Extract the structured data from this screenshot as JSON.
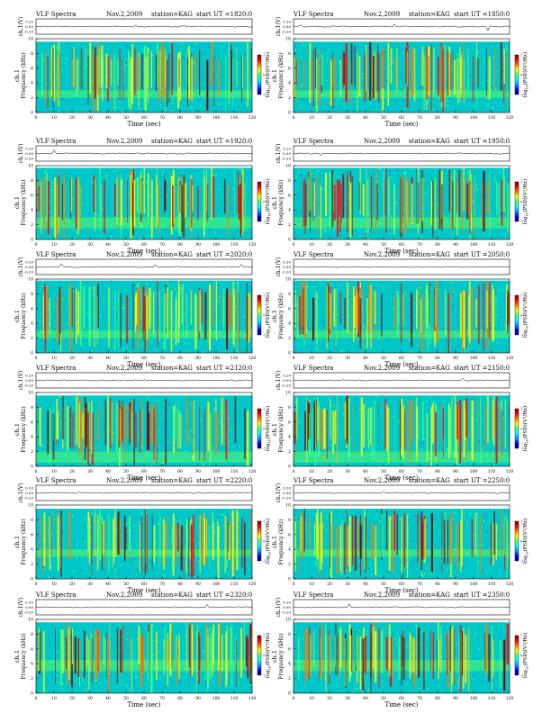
{
  "header": {
    "instrument": "VLF Spectra",
    "date": "Nov.2,2009",
    "station": "station=KAG",
    "start_prefix": "start  UT  ="
  },
  "labels": {
    "ch_axis": "ch.1(V)",
    "freq_axis_line1": "ch.1",
    "freq_axis_line2": "Frequency  (kHz)",
    "time_axis": "Time  (sec)",
    "colorbar": "log",
    "colorbar_sub": "10",
    "colorbar_rest": "(PSD)(V",
    "colorbar_sup": "2",
    "colorbar_end": "/Hz)"
  },
  "colors": {
    "background": "#00c8c8",
    "axis": "#000000",
    "colorbar_stops": [
      "#00007f",
      "#0000ff",
      "#00a0ff",
      "#00ffff",
      "#40ff80",
      "#ffff00",
      "#ff8000",
      "#ff0000",
      "#7f0000"
    ]
  },
  "chart_data": [
    {
      "type": "heatmap",
      "start_ut": "1820:0",
      "xlim": [
        0,
        120
      ],
      "x_ticks": [
        0,
        10,
        20,
        30,
        40,
        50,
        60,
        70,
        80,
        90,
        100,
        110,
        120
      ],
      "ylim": [
        0,
        10
      ],
      "y_ticks": [
        0,
        2,
        4,
        6,
        8,
        10
      ],
      "ch_ticks": [
        "0.20",
        "0.00",
        "-0.20"
      ],
      "colorbar_ticks": [
        "1",
        "0",
        "-1"
      ],
      "seed": 11,
      "band_top": 9.6,
      "low_band": [
        2,
        3
      ]
    },
    {
      "type": "heatmap",
      "start_ut": "1850:0",
      "xlim": [
        0,
        120
      ],
      "x_ticks": [
        0,
        10,
        20,
        30,
        40,
        50,
        60,
        70,
        80,
        90,
        100,
        110,
        120
      ],
      "ylim": [
        0,
        10
      ],
      "y_ticks": [
        0,
        2,
        4,
        6,
        8,
        10
      ],
      "ch_ticks": [
        "0.20",
        "0.00",
        "-0.20"
      ],
      "colorbar_ticks": [
        "1",
        "0",
        "-1"
      ],
      "seed": 23,
      "band_top": 9.6,
      "low_band": [
        2,
        3
      ]
    },
    {
      "type": "heatmap",
      "start_ut": "1920:0",
      "xlim": [
        0,
        120
      ],
      "x_ticks": [
        0,
        10,
        20,
        30,
        40,
        50,
        60,
        70,
        80,
        90,
        100,
        110,
        120
      ],
      "ylim": [
        0,
        10
      ],
      "y_ticks": [
        0,
        2,
        4,
        6,
        8,
        10
      ],
      "ch_ticks": [
        "0.20",
        "0.00",
        "-0.20"
      ],
      "colorbar_ticks": [
        "1",
        "0",
        "-1"
      ],
      "seed": 37,
      "band_top": 9.7,
      "low_band": [
        1.5,
        3
      ]
    },
    {
      "type": "heatmap",
      "start_ut": "1950:0",
      "xlim": [
        0,
        120
      ],
      "x_ticks": [
        0,
        10,
        20,
        30,
        40,
        50,
        60,
        70,
        80,
        90,
        100,
        110,
        120
      ],
      "ylim": [
        0,
        10
      ],
      "y_ticks": [
        0,
        2,
        4,
        6,
        8,
        10
      ],
      "ch_ticks": [
        "0.20",
        "0.00",
        "-0.20"
      ],
      "colorbar_ticks": [
        "1",
        "0",
        "-1"
      ],
      "seed": 41,
      "band_top": 9.7,
      "low_band": [
        1.5,
        3
      ]
    },
    {
      "type": "heatmap",
      "start_ut": "2020:0",
      "xlim": [
        0,
        120
      ],
      "x_ticks": [
        0,
        10,
        20,
        30,
        40,
        50,
        60,
        70,
        80,
        90,
        100,
        110,
        120
      ],
      "ylim": [
        0,
        10
      ],
      "y_ticks": [
        0,
        2,
        4,
        6,
        8,
        10
      ],
      "ch_ticks": [
        "0.20",
        "0.00",
        "-0.20"
      ],
      "colorbar_ticks": [
        "1",
        "0",
        "-1"
      ],
      "seed": 53,
      "band_top": 9.8,
      "low_band": [
        2,
        3
      ]
    },
    {
      "type": "heatmap",
      "start_ut": "2050:0",
      "xlim": [
        0,
        120
      ],
      "x_ticks": [
        0,
        10,
        20,
        30,
        40,
        50,
        60,
        70,
        80,
        90,
        100,
        110,
        120
      ],
      "ylim": [
        0,
        10
      ],
      "y_ticks": [
        0,
        2,
        4,
        6,
        8,
        10
      ],
      "ch_ticks": [
        "0.20",
        "0.00",
        "-0.20"
      ],
      "colorbar_ticks": [
        "1",
        "0",
        "-1"
      ],
      "seed": 67,
      "band_top": 9.8,
      "low_band": [
        2,
        3
      ]
    },
    {
      "type": "heatmap",
      "start_ut": "2120:0",
      "xlim": [
        0,
        120
      ],
      "x_ticks": [
        0,
        10,
        20,
        30,
        40,
        50,
        60,
        70,
        80,
        90,
        100,
        110,
        120
      ],
      "ylim": [
        0,
        10
      ],
      "y_ticks": [
        0,
        2,
        4,
        6,
        8,
        10
      ],
      "ch_ticks": [
        "0.20",
        "0.00",
        "-0.20"
      ],
      "colorbar_ticks": [
        "1",
        "0",
        "-1"
      ],
      "seed": 71,
      "band_top": 9.6,
      "low_band": [
        0.5,
        2
      ]
    },
    {
      "type": "heatmap",
      "start_ut": "2150:0",
      "xlim": [
        0,
        120
      ],
      "x_ticks": [
        0,
        10,
        20,
        30,
        40,
        50,
        60,
        70,
        80,
        90,
        100,
        110,
        120
      ],
      "ylim": [
        0,
        10
      ],
      "y_ticks": [
        0,
        2,
        4,
        6,
        8,
        10
      ],
      "ch_ticks": [
        "0.20",
        "0.00",
        "-0.20"
      ],
      "colorbar_ticks": [
        "1",
        "0",
        "-1"
      ],
      "seed": 83,
      "band_top": 9.6,
      "low_band": [
        0.5,
        2
      ]
    },
    {
      "type": "heatmap",
      "start_ut": "2220:0",
      "xlim": [
        0,
        120
      ],
      "x_ticks": [
        0,
        10,
        20,
        30,
        40,
        50,
        60,
        70,
        80,
        90,
        100,
        110,
        120
      ],
      "ylim": [
        0,
        10
      ],
      "y_ticks": [
        0,
        2,
        4,
        6,
        8,
        10
      ],
      "ch_ticks": [
        "0.20",
        "0.00",
        "-0.20"
      ],
      "colorbar_ticks": [
        "1",
        "0",
        "-1"
      ],
      "seed": 97,
      "band_top": 9.5,
      "low_band": [
        3,
        4
      ]
    },
    {
      "type": "heatmap",
      "start_ut": "2250:0",
      "xlim": [
        0,
        120
      ],
      "x_ticks": [
        0,
        10,
        20,
        30,
        40,
        50,
        60,
        70,
        80,
        90,
        100,
        110,
        120
      ],
      "ylim": [
        0,
        10
      ],
      "y_ticks": [
        0,
        2,
        4,
        6,
        8,
        10
      ],
      "ch_ticks": [
        "0.20",
        "0.00",
        "-0.20"
      ],
      "colorbar_ticks": [
        "1",
        "0",
        "-1"
      ],
      "seed": 101,
      "band_top": 9.5,
      "low_band": [
        3,
        4
      ]
    },
    {
      "type": "heatmap",
      "start_ut": "2320:0",
      "xlim": [
        0,
        120
      ],
      "x_ticks": [
        0,
        10,
        20,
        30,
        40,
        50,
        60,
        70,
        80,
        90,
        100,
        110,
        120
      ],
      "ylim": [
        0,
        10
      ],
      "y_ticks": [
        0,
        2,
        4,
        6,
        8,
        10
      ],
      "ch_ticks": [
        "0.20",
        "0.00",
        "-0.20"
      ],
      "colorbar_ticks": [
        "1",
        "0",
        "-1"
      ],
      "seed": 113,
      "band_top": 9.6,
      "low_band": [
        3,
        4.5
      ]
    },
    {
      "type": "heatmap",
      "start_ut": "2350:0",
      "xlim": [
        0,
        120
      ],
      "x_ticks": [
        0,
        10,
        20,
        30,
        40,
        50,
        60,
        70,
        80,
        90,
        100,
        110,
        120
      ],
      "ylim": [
        0,
        10
      ],
      "y_ticks": [
        0,
        2,
        4,
        6,
        8,
        10
      ],
      "ch_ticks": [
        "0.20",
        "0.00",
        "-0.20"
      ],
      "colorbar_ticks": [
        "1",
        "0",
        "-1"
      ],
      "seed": 127,
      "band_top": 9.6,
      "low_band": [
        3,
        4.5
      ]
    }
  ]
}
